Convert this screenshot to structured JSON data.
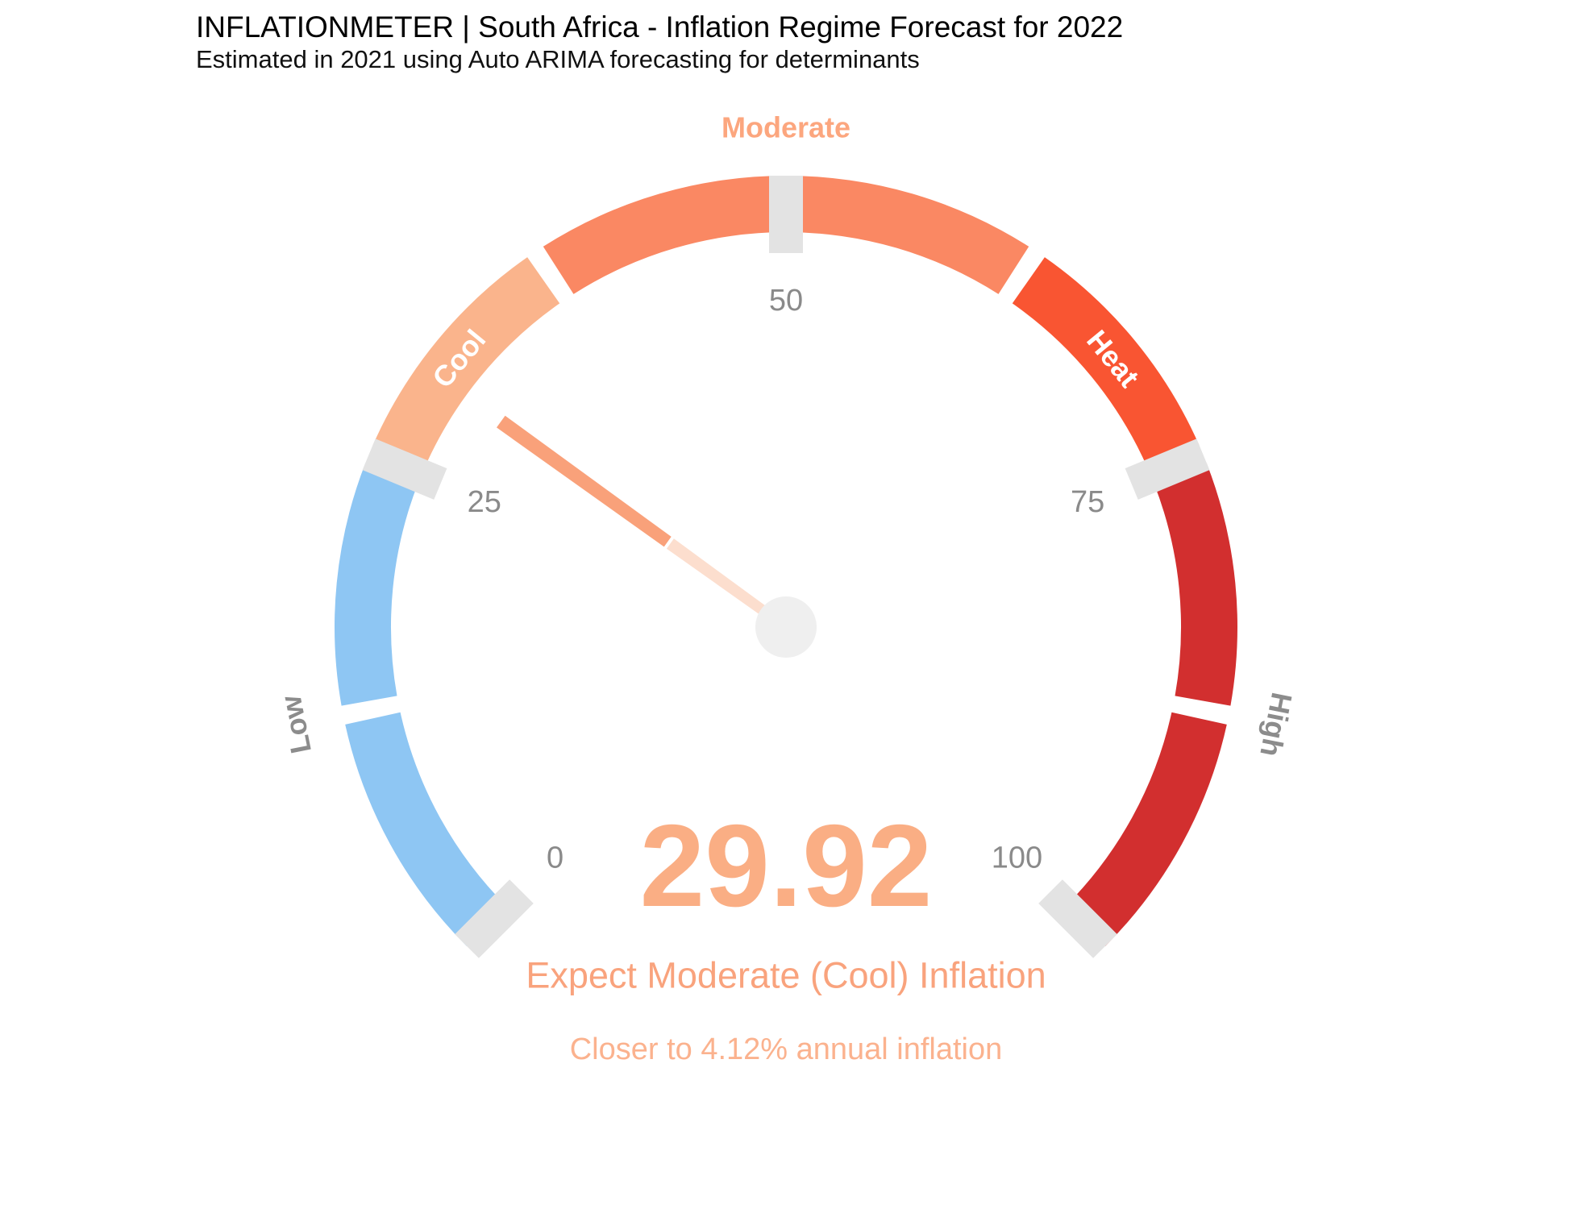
{
  "header": {
    "title": "INFLATIONMETER | South Africa - Inflation Regime Forecast for 2022",
    "subtitle": "Estimated in 2021 using Auto ARIMA forecasting for determinants"
  },
  "chart_data": {
    "type": "gauge",
    "min": 0,
    "max": 100,
    "start_angle_deg": 225,
    "end_angle_deg": -45,
    "value": 29.92,
    "value_label": "29.92",
    "detail_line1": "Expect Moderate (Cool) Inflation",
    "detail_line2": "Closer to 4.12% annual inflation",
    "axis_ticks": [
      0,
      25,
      50,
      75,
      100
    ],
    "regimes_summary": [
      {
        "name": "Low",
        "from": 0,
        "to": 25
      },
      {
        "name": "Cool",
        "from": 25,
        "to": 37.5
      },
      {
        "name": "Moderate",
        "from": 37.5,
        "to": 62.5
      },
      {
        "name": "Heat",
        "from": 62.5,
        "to": 75
      },
      {
        "name": "High",
        "from": 75,
        "to": 100
      }
    ],
    "segments": [
      {
        "from": 0,
        "to": 12.5,
        "regime": "Low",
        "color": "#8EC6F3"
      },
      {
        "from": 12.5,
        "to": 25,
        "regime": "Low",
        "color": "#8EC6F3"
      },
      {
        "from": 25,
        "to": 37.5,
        "regime": "Cool",
        "color": "#FAB48C"
      },
      {
        "from": 37.5,
        "to": 62.5,
        "regime": "Moderate",
        "color": "#FA8863"
      },
      {
        "from": 62.5,
        "to": 75,
        "regime": "Heat",
        "color": "#F95532"
      },
      {
        "from": 75,
        "to": 87.5,
        "regime": "High",
        "color": "#D22F2F"
      },
      {
        "from": 87.5,
        "to": 100,
        "regime": "High",
        "color": "#D22F2F"
      }
    ],
    "regime_labels": [
      {
        "text": "Low",
        "at": 12.5,
        "placement": "outside",
        "color": "#8C8C8C"
      },
      {
        "text": "Cool",
        "at": 31.25,
        "placement": "band",
        "color": "#FFFFFF"
      },
      {
        "text": "Moderate",
        "at": 50,
        "placement": "outside",
        "color": "#FCA67E"
      },
      {
        "text": "Heat",
        "at": 68.75,
        "placement": "band",
        "color": "#FFFFFF"
      },
      {
        "text": "High",
        "at": 87.5,
        "placement": "outside",
        "color": "#8C8C8C"
      }
    ],
    "colors": {
      "tick": "#E3E3E3",
      "axis_label": "#8A8A8A",
      "needle_outer": "#F9A17A",
      "needle_inner": "#FCDECE",
      "hub": "#EFEFEF",
      "value": "#FAAE84",
      "detail1": "#F9A37D",
      "detail2": "#FBB28E",
      "background": "#FFFFFF"
    }
  }
}
